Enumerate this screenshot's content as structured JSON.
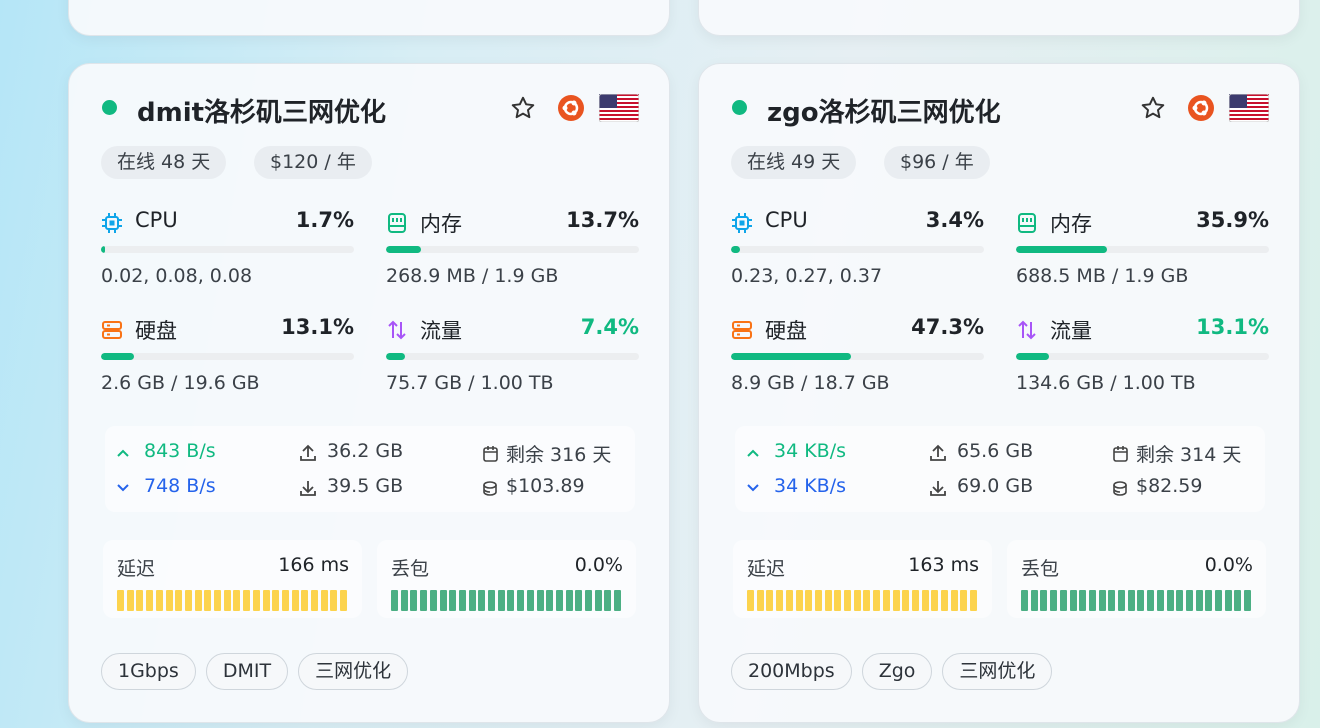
{
  "servers": [
    {
      "name": "dmit洛杉矶三网优化",
      "online": "在线 48 天",
      "price": "$120 / 年",
      "metrics": [
        {
          "label": "CPU",
          "value": 1.7,
          "value_label": "1.7%",
          "detail": "0.02, 0.08, 0.08"
        },
        {
          "label": "内存",
          "value": 13.7,
          "value_label": "13.7%",
          "detail": "268.9 MB / 1.9 GB"
        },
        {
          "label": "硬盘",
          "value": 13.1,
          "value_label": "13.1%",
          "detail": "2.6 GB / 19.6 GB"
        },
        {
          "label": "流量",
          "value": 7.4,
          "value_label": "7.4%",
          "detail": "75.7 GB / 1.00 TB"
        }
      ],
      "network": {
        "up_speed": "843 B/s",
        "down_speed": "748 B/s",
        "up_total": "36.2 GB",
        "down_total": "39.5 GB",
        "remaining": "剩余 316 天",
        "worth": "$103.89"
      },
      "latency": {
        "label": "延迟",
        "value": "166 ms"
      },
      "loss": {
        "label": "丢包",
        "value": "0.0%"
      },
      "tags": [
        "1Gbps",
        "DMIT",
        "三网优化"
      ]
    },
    {
      "name": "zgo洛杉矶三网优化",
      "online": "在线 49 天",
      "price": "$96 / 年",
      "metrics": [
        {
          "label": "CPU",
          "value": 3.4,
          "value_label": "3.4%",
          "detail": "0.23, 0.27, 0.37"
        },
        {
          "label": "内存",
          "value": 35.9,
          "value_label": "35.9%",
          "detail": "688.5 MB / 1.9 GB"
        },
        {
          "label": "硬盘",
          "value": 47.3,
          "value_label": "47.3%",
          "detail": "8.9 GB / 18.7 GB"
        },
        {
          "label": "流量",
          "value": 13.1,
          "value_label": "13.1%",
          "detail": "134.6 GB / 1.00 TB"
        }
      ],
      "network": {
        "up_speed": "34 KB/s",
        "down_speed": "34 KB/s",
        "up_total": "65.6 GB",
        "down_total": "69.0 GB",
        "remaining": "剩余 314 天",
        "worth": "$82.59"
      },
      "latency": {
        "label": "延迟",
        "value": "163 ms"
      },
      "loss": {
        "label": "丢包",
        "value": "0.0%"
      },
      "tags": [
        "200Mbps",
        "Zgo",
        "三网优化"
      ]
    }
  ]
}
